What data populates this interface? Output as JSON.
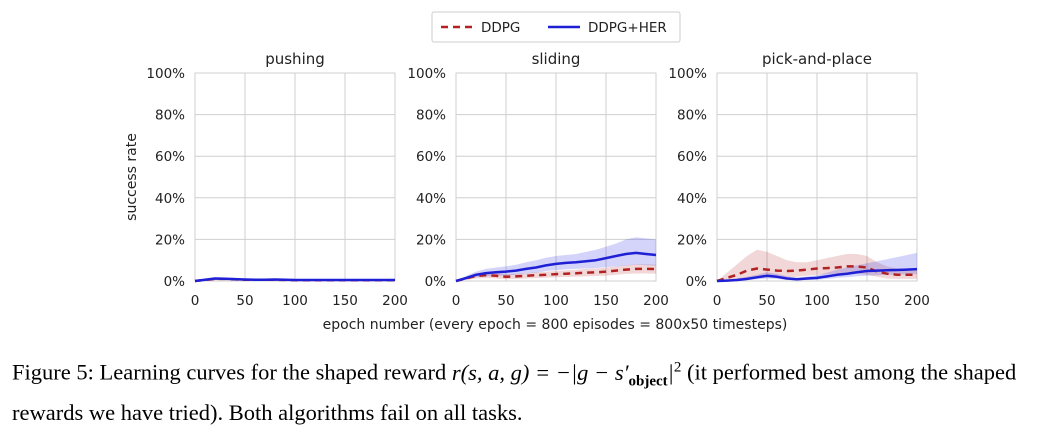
{
  "legend": {
    "entries": [
      {
        "label": "DDPG",
        "color": "#b22222",
        "style": "dashed"
      },
      {
        "label": "DDPG+HER",
        "color": "#1f1fd6",
        "style": "solid"
      }
    ]
  },
  "chart_data": [
    {
      "type": "line",
      "title": "pushing",
      "xlabel": "",
      "ylabel": "success rate",
      "xlim": [
        0,
        200
      ],
      "ylim": [
        0,
        1
      ],
      "xticks": [
        "0",
        "50",
        "100",
        "150",
        "200"
      ],
      "yticks": [
        "0%",
        "20%",
        "40%",
        "60%",
        "80%",
        "100%"
      ],
      "grid": true,
      "x": [
        0,
        10,
        20,
        30,
        40,
        50,
        60,
        70,
        80,
        90,
        100,
        110,
        120,
        130,
        140,
        150,
        160,
        170,
        180,
        190,
        200
      ],
      "series": [
        {
          "name": "DDPG",
          "values": [
            0,
            0.005,
            0.01,
            0.01,
            0.008,
            0.006,
            0.006,
            0.006,
            0.006,
            0.005,
            0.004,
            0.004,
            0.004,
            0.004,
            0.004,
            0.004,
            0.004,
            0.004,
            0.004,
            0.004,
            0.004
          ],
          "band_low": [
            0,
            0,
            0.004,
            0.004,
            0.003,
            0.002,
            0.002,
            0.002,
            0.002,
            0.002,
            0.001,
            0.001,
            0.001,
            0.001,
            0.001,
            0.001,
            0.001,
            0.001,
            0.001,
            0.001,
            0.001
          ],
          "band_high": [
            0,
            0.01,
            0.016,
            0.016,
            0.013,
            0.01,
            0.01,
            0.01,
            0.01,
            0.008,
            0.007,
            0.007,
            0.007,
            0.007,
            0.007,
            0.007,
            0.007,
            0.007,
            0.007,
            0.007,
            0.007
          ]
        },
        {
          "name": "DDPG+HER",
          "values": [
            0,
            0.006,
            0.012,
            0.011,
            0.009,
            0.007,
            0.006,
            0.006,
            0.007,
            0.006,
            0.005,
            0.005,
            0.005,
            0.005,
            0.005,
            0.005,
            0.005,
            0.005,
            0.005,
            0.005,
            0.005
          ],
          "band_low": [
            0,
            0.002,
            0.006,
            0.006,
            0.004,
            0.003,
            0.002,
            0.002,
            0.003,
            0.002,
            0.002,
            0.002,
            0.002,
            0.002,
            0.002,
            0.002,
            0.002,
            0.002,
            0.002,
            0.002,
            0.002
          ],
          "band_high": [
            0,
            0.01,
            0.018,
            0.017,
            0.014,
            0.011,
            0.01,
            0.01,
            0.011,
            0.01,
            0.008,
            0.008,
            0.008,
            0.008,
            0.008,
            0.008,
            0.008,
            0.008,
            0.008,
            0.008,
            0.008
          ]
        }
      ]
    },
    {
      "type": "line",
      "title": "sliding",
      "xlabel": "",
      "ylabel": "",
      "xlim": [
        0,
        200
      ],
      "ylim": [
        0,
        1
      ],
      "xticks": [
        "0",
        "50",
        "100",
        "150",
        "200"
      ],
      "yticks": [
        "0%",
        "20%",
        "40%",
        "60%",
        "80%",
        "100%"
      ],
      "grid": true,
      "x": [
        0,
        10,
        20,
        30,
        40,
        50,
        60,
        70,
        80,
        90,
        100,
        110,
        120,
        130,
        140,
        150,
        160,
        170,
        180,
        190,
        200
      ],
      "series": [
        {
          "name": "DDPG",
          "values": [
            0,
            0.012,
            0.025,
            0.028,
            0.025,
            0.02,
            0.022,
            0.025,
            0.028,
            0.03,
            0.033,
            0.035,
            0.037,
            0.04,
            0.042,
            0.045,
            0.05,
            0.055,
            0.058,
            0.058,
            0.057
          ],
          "band_low": [
            0,
            0.005,
            0.012,
            0.014,
            0.012,
            0.009,
            0.01,
            0.012,
            0.014,
            0.016,
            0.018,
            0.019,
            0.02,
            0.022,
            0.024,
            0.026,
            0.03,
            0.034,
            0.036,
            0.036,
            0.035
          ],
          "band_high": [
            0,
            0.02,
            0.038,
            0.042,
            0.038,
            0.032,
            0.035,
            0.038,
            0.042,
            0.045,
            0.048,
            0.051,
            0.054,
            0.058,
            0.06,
            0.064,
            0.07,
            0.076,
            0.08,
            0.08,
            0.079
          ]
        },
        {
          "name": "DDPG+HER",
          "values": [
            0,
            0.014,
            0.03,
            0.038,
            0.042,
            0.045,
            0.05,
            0.058,
            0.065,
            0.075,
            0.082,
            0.087,
            0.09,
            0.095,
            0.1,
            0.11,
            0.12,
            0.13,
            0.135,
            0.13,
            0.125
          ],
          "band_low": [
            0,
            0.006,
            0.018,
            0.022,
            0.025,
            0.026,
            0.03,
            0.036,
            0.04,
            0.048,
            0.052,
            0.056,
            0.058,
            0.06,
            0.062,
            0.066,
            0.07,
            0.074,
            0.078,
            0.076,
            0.074
          ],
          "band_high": [
            0,
            0.024,
            0.045,
            0.058,
            0.065,
            0.07,
            0.078,
            0.09,
            0.1,
            0.112,
            0.12,
            0.125,
            0.13,
            0.14,
            0.15,
            0.165,
            0.18,
            0.2,
            0.21,
            0.205,
            0.2
          ]
        }
      ]
    },
    {
      "type": "line",
      "title": "pick-and-place",
      "xlabel": "",
      "ylabel": "",
      "xlim": [
        0,
        200
      ],
      "ylim": [
        0,
        1
      ],
      "xticks": [
        "0",
        "50",
        "100",
        "150",
        "200"
      ],
      "yticks": [
        "0%",
        "20%",
        "40%",
        "60%",
        "80%",
        "100%"
      ],
      "grid": true,
      "x": [
        0,
        10,
        20,
        30,
        40,
        50,
        60,
        70,
        80,
        90,
        100,
        110,
        120,
        130,
        140,
        150,
        160,
        170,
        180,
        190,
        200
      ],
      "series": [
        {
          "name": "DDPG",
          "values": [
            0,
            0.015,
            0.03,
            0.05,
            0.06,
            0.055,
            0.05,
            0.048,
            0.05,
            0.055,
            0.06,
            0.062,
            0.065,
            0.07,
            0.07,
            0.065,
            0.045,
            0.035,
            0.03,
            0.03,
            0.03
          ],
          "band_low": [
            0,
            0.005,
            0.01,
            0.015,
            0.02,
            0.018,
            0.016,
            0.018,
            0.02,
            0.025,
            0.03,
            0.032,
            0.034,
            0.036,
            0.034,
            0.03,
            0.02,
            0.012,
            0.01,
            0.01,
            0.01
          ],
          "band_high": [
            0,
            0.04,
            0.08,
            0.12,
            0.15,
            0.14,
            0.12,
            0.1,
            0.09,
            0.09,
            0.1,
            0.11,
            0.12,
            0.13,
            0.13,
            0.12,
            0.09,
            0.07,
            0.06,
            0.06,
            0.06
          ]
        },
        {
          "name": "DDPG+HER",
          "values": [
            0,
            0.002,
            0.005,
            0.01,
            0.018,
            0.025,
            0.02,
            0.012,
            0.008,
            0.012,
            0.015,
            0.022,
            0.03,
            0.035,
            0.042,
            0.048,
            0.05,
            0.052,
            0.053,
            0.055,
            0.057
          ],
          "band_low": [
            0,
            0,
            0.001,
            0.004,
            0.008,
            0.012,
            0.01,
            0.005,
            0.003,
            0.005,
            0.006,
            0.01,
            0.015,
            0.018,
            0.022,
            0.026,
            0.028,
            0.03,
            0.03,
            0.032,
            0.033
          ],
          "band_high": [
            0,
            0.006,
            0.012,
            0.02,
            0.03,
            0.042,
            0.035,
            0.022,
            0.016,
            0.022,
            0.028,
            0.04,
            0.055,
            0.065,
            0.075,
            0.085,
            0.095,
            0.105,
            0.115,
            0.125,
            0.135
          ]
        }
      ]
    }
  ],
  "shared_xlabel": "epoch number (every epoch = 800 episodes = 800x50 timesteps)",
  "caption": {
    "prefix": "Figure 5: Learning curves for the shaped reward ",
    "formula_lhs": "r(s, a, g) = −|g − s′",
    "formula_sub": "object",
    "formula_close": "|",
    "formula_sup": "2",
    "suffix": " (it performed best among the shaped rewards we have tried). Both algorithms fail on all tasks."
  }
}
